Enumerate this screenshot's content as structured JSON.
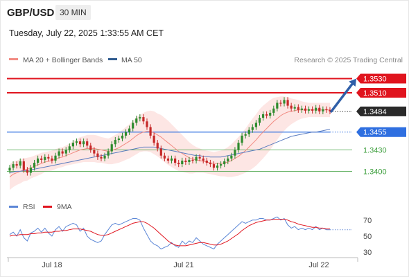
{
  "header": {
    "symbol": "GBP/USD",
    "timeframe": "30 MIN",
    "datetime": "Tuesday, July 22, 2025 1:33:55 AM CET"
  },
  "legend": {
    "ma20": "MA 20 + Bollinger Bands",
    "ma50": "MA 50",
    "rsi": "RSI",
    "rsi_ma": "9MA",
    "credit": "Research © 2025 Trading Central"
  },
  "colors": {
    "up": "#2e8b2e",
    "down": "#c62828",
    "ma20": "#f28b82",
    "bands": "#fde3e1",
    "ma50": "#5b7cc0",
    "resistance": "#e0141e",
    "support": "#2f6fe0",
    "level_green": "#3c9e3c",
    "arrow": "#2f5fa8",
    "rsi": "#5b86d6",
    "rsi_ma": "#e0141e"
  },
  "chart_data": [
    {
      "type": "candlestick",
      "title": "",
      "price_ylim": [
        1.338,
        1.3545
      ],
      "x_ticks": [
        "Jul 18",
        "Jul 21",
        "Jul 22"
      ],
      "levels": [
        {
          "label": "1.3530",
          "value": 1.353,
          "kind": "resistance"
        },
        {
          "label": "1.3510",
          "value": 1.351,
          "kind": "resistance"
        },
        {
          "label": "1.3484",
          "value": 1.3484,
          "kind": "last"
        },
        {
          "label": "1.3455",
          "value": 1.3455,
          "kind": "support"
        },
        {
          "label": "1.3430",
          "value": 1.343,
          "kind": "level"
        },
        {
          "label": "1.3400",
          "value": 1.34,
          "kind": "level"
        }
      ],
      "closes": [
        1.3405,
        1.341,
        1.3408,
        1.3414,
        1.3402,
        1.3398,
        1.3405,
        1.3412,
        1.3418,
        1.3416,
        1.342,
        1.3418,
        1.3415,
        1.3422,
        1.3428,
        1.3425,
        1.343,
        1.3435,
        1.344,
        1.3442,
        1.3438,
        1.3442,
        1.3436,
        1.343,
        1.3425,
        1.342,
        1.3418,
        1.3422,
        1.3428,
        1.3438,
        1.3444,
        1.3446,
        1.345,
        1.3455,
        1.346,
        1.3468,
        1.3474,
        1.3476,
        1.347,
        1.3462,
        1.345,
        1.344,
        1.3432,
        1.3422,
        1.3418,
        1.3415,
        1.3418,
        1.3412,
        1.341,
        1.3415,
        1.3413,
        1.3416,
        1.3415,
        1.342,
        1.3418,
        1.3415,
        1.3412,
        1.341,
        1.3405,
        1.3408,
        1.341,
        1.3414,
        1.3418,
        1.3422,
        1.343,
        1.344,
        1.345,
        1.3452,
        1.3458,
        1.3462,
        1.3468,
        1.3475,
        1.348,
        1.3478,
        1.3482,
        1.3488,
        1.3496,
        1.3495,
        1.35,
        1.3492,
        1.3488,
        1.349,
        1.3486,
        1.3488,
        1.3485,
        1.3487,
        1.3485,
        1.3489,
        1.3484,
        1.3487,
        1.3486,
        1.3484
      ],
      "ma20": [
        1.3392,
        1.3396,
        1.3398,
        1.34,
        1.3402,
        1.3403,
        1.3405,
        1.3407,
        1.3409,
        1.3411,
        1.3413,
        1.3414,
        1.3415,
        1.3417,
        1.3419,
        1.342,
        1.3422,
        1.3424,
        1.3426,
        1.3428,
        1.343,
        1.3431,
        1.3432,
        1.3432,
        1.3432,
        1.3431,
        1.343,
        1.3429,
        1.3428,
        1.3429,
        1.3431,
        1.3433,
        1.3436,
        1.3439,
        1.3442,
        1.3446,
        1.345,
        1.3453,
        1.3455,
        1.3456,
        1.3456,
        1.3454,
        1.3451,
        1.3448,
        1.3444,
        1.344,
        1.3436,
        1.3432,
        1.3428,
        1.3425,
        1.3422,
        1.3419,
        1.3417,
        1.3416,
        1.3415,
        1.3414,
        1.3413,
        1.3412,
        1.3411,
        1.3411,
        1.3411,
        1.3412,
        1.3413,
        1.3415,
        1.3418,
        1.3421,
        1.3425,
        1.3429,
        1.3434,
        1.3439,
        1.3444,
        1.345,
        1.3455,
        1.346,
        1.3465,
        1.347,
        1.3474,
        1.3478,
        1.3481,
        1.3483,
        1.3484,
        1.3485,
        1.3486,
        1.3486,
        1.3486,
        1.3486,
        1.3486,
        1.3486,
        1.3486,
        1.3486,
        1.3486,
        1.3486
      ],
      "ma50": [
        1.3398,
        1.3399,
        1.34,
        1.34,
        1.3401,
        1.3401,
        1.3402,
        1.3403,
        1.3404,
        1.3405,
        1.3406,
        1.3407,
        1.3408,
        1.3409,
        1.341,
        1.3411,
        1.3412,
        1.3413,
        1.3414,
        1.3415,
        1.3416,
        1.3417,
        1.3418,
        1.3419,
        1.342,
        1.3421,
        1.3422,
        1.3423,
        1.3424,
        1.3425,
        1.3426,
        1.3427,
        1.3428,
        1.3429,
        1.343,
        1.3431,
        1.3432,
        1.3433,
        1.3434,
        1.3434,
        1.3434,
        1.3434,
        1.3433,
        1.3432,
        1.3431,
        1.343,
        1.3429,
        1.3428,
        1.3427,
        1.3426,
        1.3425,
        1.3424,
        1.3423,
        1.3422,
        1.3422,
        1.3421,
        1.3421,
        1.342,
        1.342,
        1.342,
        1.342,
        1.3421,
        1.3422,
        1.3423,
        1.3424,
        1.3425,
        1.3426,
        1.3427,
        1.3428,
        1.3429,
        1.343,
        1.3431,
        1.3433,
        1.3435,
        1.3437,
        1.3439,
        1.3441,
        1.3443,
        1.3445,
        1.3447,
        1.3449,
        1.345,
        1.3451,
        1.3452,
        1.3453,
        1.3454,
        1.3455,
        1.3455,
        1.3456,
        1.3457,
        1.3458,
        1.3459
      ],
      "band_width": [
        0.0018,
        0.0018,
        0.0017,
        0.0017,
        0.0016,
        0.0016,
        0.0015,
        0.0015,
        0.0015,
        0.0015,
        0.0014,
        0.0014,
        0.0014,
        0.0014,
        0.0014,
        0.0014,
        0.0014,
        0.0015,
        0.0016,
        0.0017,
        0.0018,
        0.0018,
        0.0019,
        0.0019,
        0.0019,
        0.0019,
        0.0018,
        0.0018,
        0.0018,
        0.0019,
        0.002,
        0.0021,
        0.0022,
        0.0023,
        0.0024,
        0.0025,
        0.0026,
        0.0026,
        0.0027,
        0.0028,
        0.0029,
        0.003,
        0.003,
        0.0031,
        0.0031,
        0.0031,
        0.003,
        0.0029,
        0.0028,
        0.0026,
        0.0024,
        0.0022,
        0.002,
        0.0018,
        0.0017,
        0.0016,
        0.0016,
        0.0016,
        0.0016,
        0.0017,
        0.0018,
        0.0019,
        0.0021,
        0.0023,
        0.0025,
        0.0027,
        0.0029,
        0.0031,
        0.0033,
        0.0035,
        0.0036,
        0.0037,
        0.0037,
        0.0036,
        0.0035,
        0.0033,
        0.003,
        0.0027,
        0.0024,
        0.0021,
        0.0018,
        0.0016,
        0.0014,
        0.0012,
        0.0011,
        0.001,
        0.001,
        0.001,
        0.001,
        0.001,
        0.001,
        0.001
      ],
      "projection": {
        "from": 1.3484,
        "to": 1.353
      }
    },
    {
      "type": "line",
      "title": "",
      "ylim": [
        25,
        75
      ],
      "y_ticks": [
        70,
        50,
        30
      ],
      "series": [
        {
          "name": "RSI",
          "values": [
            52,
            55,
            50,
            58,
            48,
            44,
            54,
            56,
            60,
            55,
            60,
            54,
            50,
            58,
            62,
            56,
            62,
            64,
            66,
            64,
            56,
            60,
            50,
            46,
            44,
            42,
            44,
            52,
            58,
            64,
            66,
            64,
            66,
            68,
            70,
            72,
            72,
            70,
            60,
            52,
            44,
            40,
            38,
            34,
            36,
            38,
            42,
            38,
            36,
            44,
            40,
            44,
            42,
            48,
            44,
            40,
            38,
            36,
            34,
            40,
            44,
            48,
            52,
            56,
            60,
            64,
            68,
            66,
            68,
            70,
            70,
            72,
            72,
            70,
            70,
            72,
            74,
            70,
            72,
            64,
            60,
            62,
            58,
            60,
            58,
            60,
            58,
            62,
            58,
            60,
            58,
            58
          ]
        },
        {
          "name": "9MA",
          "values": [
            50,
            51,
            51,
            52,
            52,
            52,
            53,
            53,
            54,
            54,
            55,
            55,
            55,
            56,
            56,
            57,
            57,
            58,
            59,
            59,
            59,
            58,
            57,
            56,
            54,
            52,
            51,
            51,
            52,
            54,
            56,
            58,
            60,
            62,
            64,
            66,
            67,
            68,
            68,
            66,
            63,
            60,
            56,
            52,
            48,
            44,
            41,
            39,
            38,
            38,
            38,
            39,
            40,
            41,
            42,
            42,
            41,
            40,
            39,
            39,
            40,
            42,
            44,
            47,
            50,
            53,
            57,
            60,
            63,
            65,
            67,
            68,
            69,
            70,
            70,
            71,
            71,
            71,
            71,
            70,
            68,
            67,
            65,
            64,
            63,
            62,
            61,
            61,
            60,
            60,
            59,
            59
          ]
        }
      ]
    }
  ]
}
